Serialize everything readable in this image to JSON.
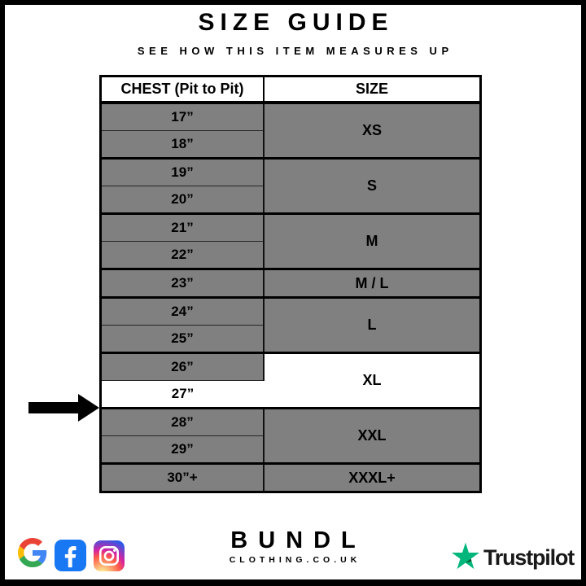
{
  "page": {
    "title": "SIZE GUIDE",
    "subtitle": "SEE HOW THIS ITEM MEASURES UP"
  },
  "table": {
    "columns": [
      "CHEST (Pit to Pit)",
      "SIZE"
    ],
    "groups": [
      {
        "size": "XS",
        "measurements": [
          "17”",
          "18”"
        ]
      },
      {
        "size": "S",
        "measurements": [
          "19”",
          "20”"
        ]
      },
      {
        "size": "M",
        "measurements": [
          "21”",
          "22”"
        ]
      },
      {
        "size": "M / L",
        "measurements": [
          "23”"
        ]
      },
      {
        "size": "L",
        "measurements": [
          "24”",
          "25”"
        ]
      },
      {
        "size": "XL",
        "measurements": [
          "26”",
          "27”"
        ],
        "highlighted": true,
        "highlighted_measurement": "27”"
      },
      {
        "size": "XXL",
        "measurements": [
          "28”",
          "29”"
        ]
      },
      {
        "size": "XXXL+",
        "measurements": [
          "30”+"
        ]
      }
    ]
  },
  "highlight": {
    "measurement": "27”",
    "size": "XL",
    "indicator": "black-arrow-pointing-right"
  },
  "footer": {
    "brand_name": "BUNDL",
    "brand_domain": "CLOTHING.CO.UK",
    "social_icons": [
      "google-icon",
      "facebook-icon",
      "instagram-icon"
    ],
    "trustpilot_label": "Trustpilot"
  },
  "colors": {
    "row_gray": "#808080",
    "highlight_white": "#FFFFFF",
    "border_black": "#000000",
    "facebook_blue": "#1877F2",
    "trustpilot_green": "#00B67A",
    "trustpilot_dark_green": "#005128"
  },
  "chart_data": {
    "type": "table",
    "title": "SIZE GUIDE",
    "subtitle": "SEE HOW THIS ITEM MEASURES UP",
    "columns": [
      "CHEST (Pit to Pit)",
      "SIZE"
    ],
    "rows": [
      [
        "17”",
        "XS"
      ],
      [
        "18”",
        "XS"
      ],
      [
        "19”",
        "S"
      ],
      [
        "20”",
        "S"
      ],
      [
        "21”",
        "M"
      ],
      [
        "22”",
        "M"
      ],
      [
        "23”",
        "M / L"
      ],
      [
        "24”",
        "L"
      ],
      [
        "25”",
        "L"
      ],
      [
        "26”",
        "XL"
      ],
      [
        "27”",
        "XL"
      ],
      [
        "28”",
        "XXL"
      ],
      [
        "29”",
        "XXL"
      ],
      [
        "30”+",
        "XXXL+"
      ]
    ],
    "highlighted_row": [
      "27”",
      "XL"
    ],
    "layout_hints": {
      "merged_size_cells": true,
      "row_fill": "#808080",
      "highlight_fill": "#FFFFFF"
    }
  }
}
